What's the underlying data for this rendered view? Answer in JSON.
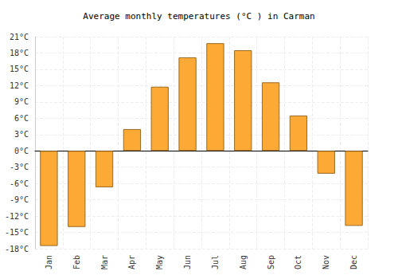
{
  "chart_data": {
    "type": "bar",
    "title": "Average monthly temperatures (°C ) in Carman",
    "categories": [
      "Jan",
      "Feb",
      "Mar",
      "Apr",
      "May",
      "Jun",
      "Jul",
      "Aug",
      "Sep",
      "Oct",
      "Nov",
      "Dec"
    ],
    "values": [
      -17.5,
      -14,
      -6.7,
      4,
      11.8,
      17.2,
      19.8,
      18.5,
      12.6,
      6.5,
      -4.2,
      -13.8
    ],
    "color": "#fca935",
    "ylim": [
      -18,
      21
    ],
    "yticks": [
      {
        "value": -18,
        "label": "-18°C"
      },
      {
        "value": -15,
        "label": "-15°C"
      },
      {
        "value": -12,
        "label": "-12°C"
      },
      {
        "value": -9,
        "label": "-9°C"
      },
      {
        "value": -6,
        "label": "-6°C"
      },
      {
        "value": -3,
        "label": "-3°C"
      },
      {
        "value": 0,
        "label": "0°C"
      },
      {
        "value": 3,
        "label": "3°C"
      },
      {
        "value": 6,
        "label": "6°C"
      },
      {
        "value": 9,
        "label": "9°C"
      },
      {
        "value": 12,
        "label": "12°C"
      },
      {
        "value": 15,
        "label": "15°C"
      },
      {
        "value": 18,
        "label": "18°C"
      },
      {
        "value": 21,
        "label": "21°C"
      }
    ],
    "grid": true
  }
}
